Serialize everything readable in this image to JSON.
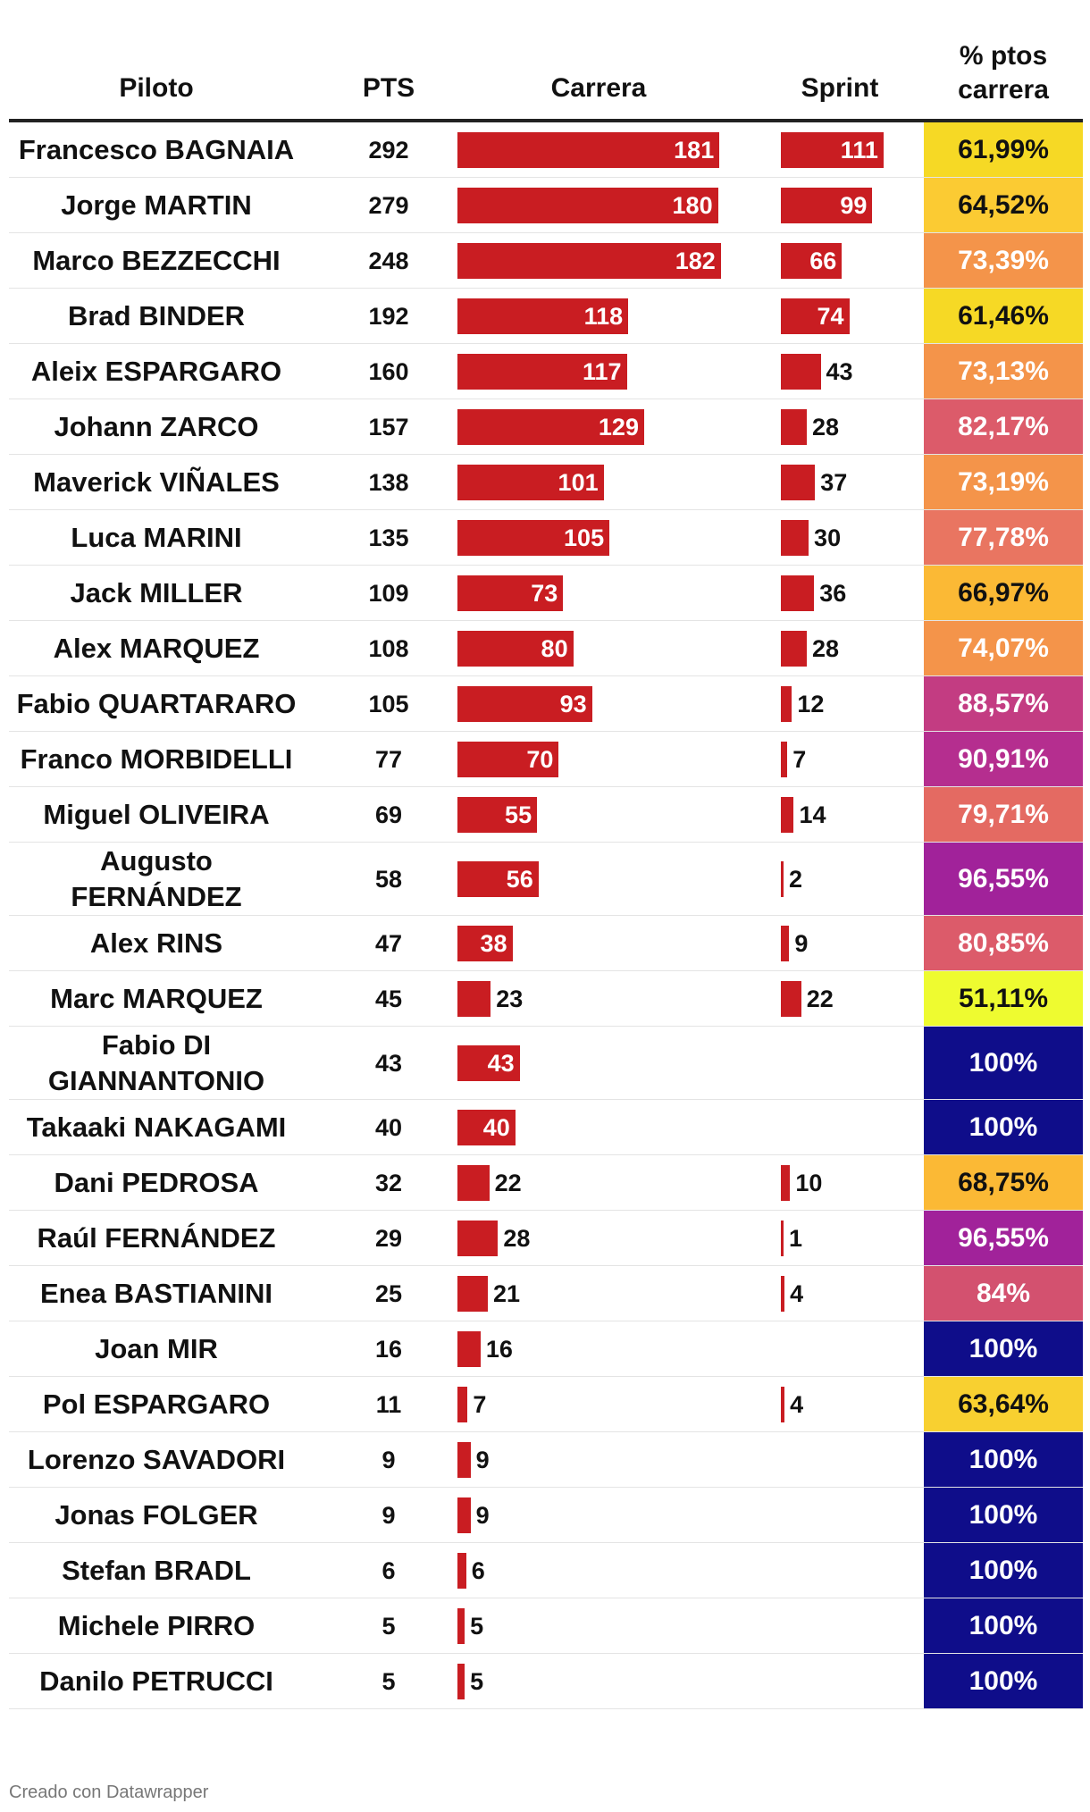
{
  "headers": {
    "piloto": "Piloto",
    "pts": "PTS",
    "carrera": "Carrera",
    "sprint": "Sprint",
    "pct_line1": "% ptos",
    "pct_line2": "carrera"
  },
  "footer": "Creado con Datawrapper",
  "colors": {
    "bar": "#c91d22"
  },
  "chart_data": {
    "type": "table",
    "columns": [
      "Piloto",
      "PTS",
      "Carrera",
      "Sprint",
      "% ptos carrera"
    ],
    "rows": [
      {
        "piloto": "Francesco BAGNAIA",
        "pts": "292",
        "carrera": 181,
        "sprint": 111,
        "pct": "61,99%",
        "color": "#f6d925"
      },
      {
        "piloto": "Jorge MARTIN",
        "pts": "279",
        "carrera": 180,
        "sprint": 99,
        "pct": "64,52%",
        "color": "#fbcb33"
      },
      {
        "piloto": "Marco BEZZECCHI",
        "pts": "248",
        "carrera": 182,
        "sprint": 66,
        "pct": "73,39%",
        "color": "#f4944a"
      },
      {
        "piloto": "Brad BINDER",
        "pts": "192",
        "carrera": 118,
        "sprint": 74,
        "pct": "61,46%",
        "color": "#f6d925"
      },
      {
        "piloto": "Aleix ESPARGARO",
        "pts": "160",
        "carrera": 117,
        "sprint": 43,
        "pct": "73,13%",
        "color": "#f4944a"
      },
      {
        "piloto": "Johann ZARCO",
        "pts": "157",
        "carrera": 129,
        "sprint": 28,
        "pct": "82,17%",
        "color": "#dc5b6a"
      },
      {
        "piloto": "Maverick VIÑALES",
        "pts": "138",
        "carrera": 101,
        "sprint": 37,
        "pct": "73,19%",
        "color": "#f4944a"
      },
      {
        "piloto": "Luca MARINI",
        "pts": "135",
        "carrera": 105,
        "sprint": 30,
        "pct": "77,78%",
        "color": "#e97561"
      },
      {
        "piloto": "Jack MILLER",
        "pts": "109",
        "carrera": 73,
        "sprint": 36,
        "pct": "66,97%",
        "color": "#fbb935"
      },
      {
        "piloto": "Alex MARQUEZ",
        "pts": "108",
        "carrera": 80,
        "sprint": 28,
        "pct": "74,07%",
        "color": "#f4944a"
      },
      {
        "piloto": "Fabio QUARTARARO",
        "pts": "105",
        "carrera": 93,
        "sprint": 12,
        "pct": "88,57%",
        "color": "#c33c82"
      },
      {
        "piloto": "Franco MORBIDELLI",
        "pts": "77",
        "carrera": 70,
        "sprint": 7,
        "pct": "90,91%",
        "color": "#b52e8f"
      },
      {
        "piloto": "Miguel OLIVEIRA",
        "pts": "69",
        "carrera": 55,
        "sprint": 14,
        "pct": "79,71%",
        "color": "#e46a62"
      },
      {
        "piloto": "Augusto FERNÁNDEZ",
        "pts": "58",
        "carrera": 56,
        "sprint": 2,
        "pct": "96,55%",
        "color": "#a1229a"
      },
      {
        "piloto": "Alex RINS",
        "pts": "47",
        "carrera": 38,
        "sprint": 9,
        "pct": "80,85%",
        "color": "#dc5b6a"
      },
      {
        "piloto": "Marc MARQUEZ",
        "pts": "45",
        "carrera": 23,
        "sprint": 22,
        "pct": "51,11%",
        "color": "#eefb30"
      },
      {
        "piloto": "Fabio DI GIANNANTONIO",
        "pts": "43",
        "carrera": 43,
        "sprint": null,
        "pct": "100%",
        "color": "#0f0d8a"
      },
      {
        "piloto": "Takaaki NAKAGAMI",
        "pts": "40",
        "carrera": 40,
        "sprint": null,
        "pct": "100%",
        "color": "#0f0d8a"
      },
      {
        "piloto": "Dani PEDROSA",
        "pts": "32",
        "carrera": 22,
        "sprint": 10,
        "pct": "68,75%",
        "color": "#fbb935"
      },
      {
        "piloto": "Raúl FERNÁNDEZ",
        "pts": "29",
        "carrera": 28,
        "sprint": 1,
        "pct": "96,55%",
        "color": "#a1229a"
      },
      {
        "piloto": "Enea BASTIANINI",
        "pts": "25",
        "carrera": 21,
        "sprint": 4,
        "pct": "84%",
        "color": "#d3516f"
      },
      {
        "piloto": "Joan MIR",
        "pts": "16",
        "carrera": 16,
        "sprint": null,
        "pct": "100%",
        "color": "#0f0d8a"
      },
      {
        "piloto": "Pol ESPARGARO",
        "pts": "11",
        "carrera": 7,
        "sprint": 4,
        "pct": "63,64%",
        "color": "#f8d030"
      },
      {
        "piloto": "Lorenzo SAVADORI",
        "pts": "9",
        "carrera": 9,
        "sprint": null,
        "pct": "100%",
        "color": "#0f0d8a"
      },
      {
        "piloto": "Jonas FOLGER",
        "pts": "9",
        "carrera": 9,
        "sprint": null,
        "pct": "100%",
        "color": "#0f0d8a"
      },
      {
        "piloto": "Stefan BRADL",
        "pts": "6",
        "carrera": 6,
        "sprint": null,
        "pct": "100%",
        "color": "#0f0d8a"
      },
      {
        "piloto": "Michele PIRRO",
        "pts": "5",
        "carrera": 5,
        "sprint": null,
        "pct": "100%",
        "color": "#0f0d8a"
      },
      {
        "piloto": "Danilo PETRUCCI",
        "pts": "5",
        "carrera": 5,
        "sprint": null,
        "pct": "100%",
        "color": "#0f0d8a"
      }
    ]
  }
}
